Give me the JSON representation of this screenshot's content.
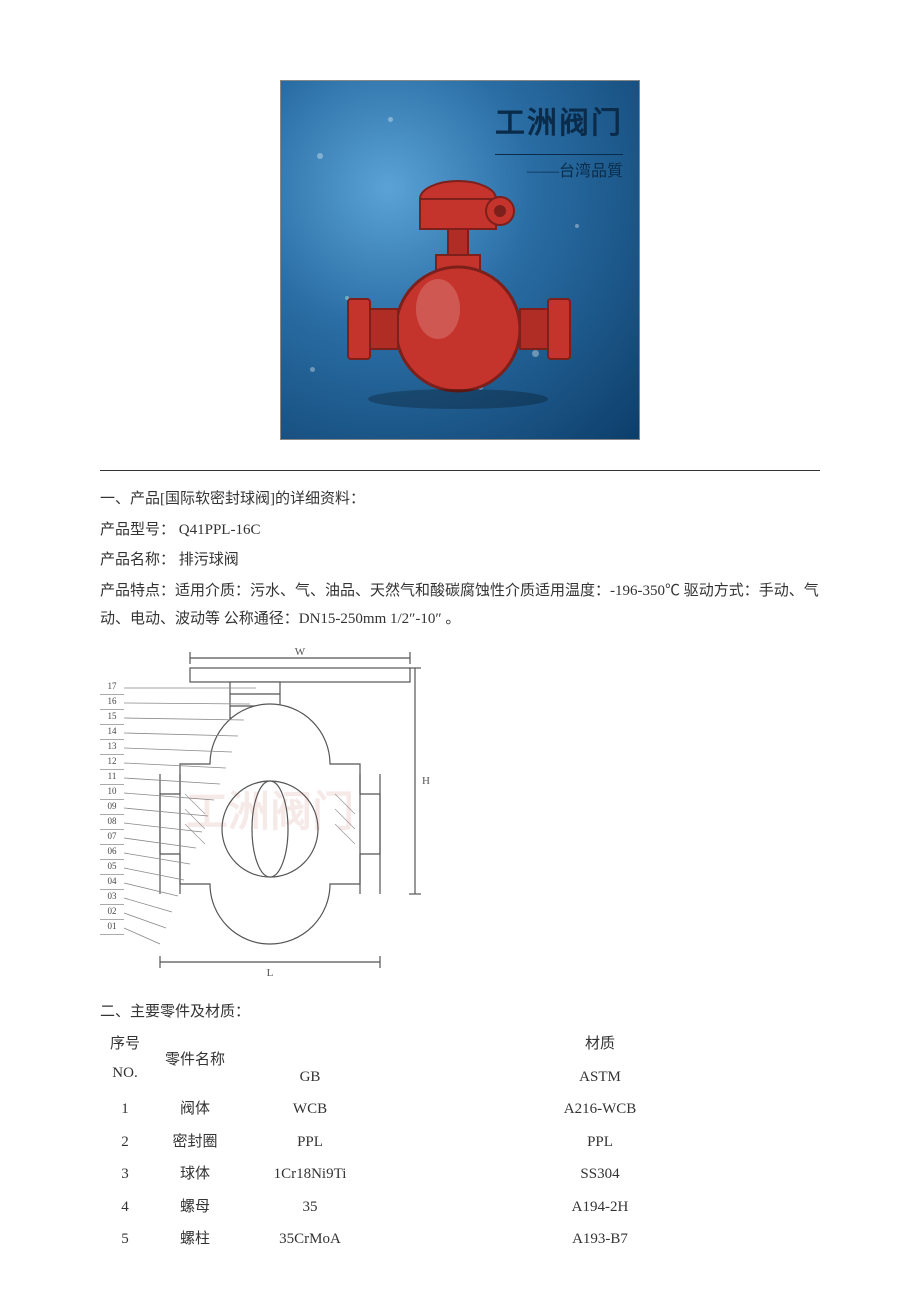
{
  "photo": {
    "title_line1": "工洲阀门",
    "title_line2": "——台湾品質",
    "bg_gradient_inner": "#5ba3d6",
    "bg_gradient_mid": "#2a6ea5",
    "bg_gradient_outer": "#0d3e6a",
    "valve_color": "#c5342c",
    "valve_shadow": "#7d1f1a",
    "border_color": "#888888"
  },
  "section1": {
    "heading": "一、产品[国际软密封球阀]的详细资料：",
    "model_label": "产品型号：",
    "model_value": "Q41PPL-16C",
    "name_label": "产品名称：",
    "name_value": "  排污球阀",
    "features": "产品特点：适用介质：污水、气、油品、天然气和酸碳腐蚀性介质适用温度：-196-350℃ 驱动方式：手动、气动、电动、波动等 公称通径：DN15-250mm   1/2″-10″ 。"
  },
  "diagram": {
    "callouts": [
      "01",
      "02",
      "03",
      "04",
      "05",
      "06",
      "07",
      "08",
      "09",
      "10",
      "11",
      "12",
      "13",
      "14",
      "15",
      "16",
      "17"
    ],
    "dim_W": "W",
    "dim_H": "H",
    "dim_L": "L",
    "watermark": "工洲阀门",
    "line_color": "#555555"
  },
  "section2": {
    "heading": "二、主要零件及材质：",
    "header": {
      "no_line1": "序号",
      "no_line2": "NO.",
      "name": "零件名称",
      "material": "材质",
      "gb": "GB",
      "astm": "ASTM"
    },
    "rows": [
      {
        "no": "1",
        "name": "阀体",
        "gb": "WCB",
        "astm": "A216-WCB"
      },
      {
        "no": "2",
        "name": "密封圈",
        "gb": "PPL",
        "astm": "PPL"
      },
      {
        "no": "3",
        "name": "球体",
        "gb": "1Cr18Ni9Ti",
        "astm": "SS304"
      },
      {
        "no": "4",
        "name": "螺母",
        "gb": "35",
        "astm": "A194-2H"
      },
      {
        "no": "5",
        "name": "螺柱",
        "gb": "35CrMoA",
        "astm": "A193-B7"
      }
    ]
  },
  "styles": {
    "page_bg": "#ffffff",
    "text_color": "#333333",
    "font_size_body": 15,
    "font_size_diagram_label": 9,
    "hr_color": "#333333"
  }
}
